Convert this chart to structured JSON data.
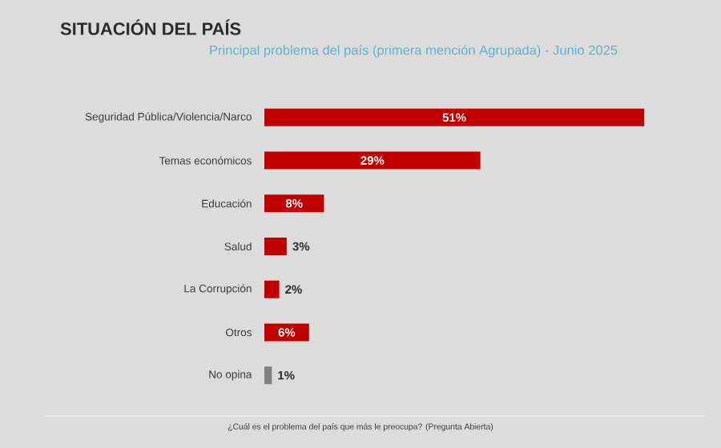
{
  "chart_data": {
    "type": "bar",
    "orientation": "horizontal",
    "title": "SITUACIÓN DEL PAÍS",
    "subtitle": "Principal problema del país (primera mención Agrupada) - Junio 2025",
    "categories": [
      "Seguridad Pública/Violencia/Narco",
      "Temas económicos",
      "Educación",
      "Salud",
      "La Corrupción",
      "Otros",
      "No opina"
    ],
    "values": [
      51,
      29,
      8,
      3,
      2,
      6,
      1
    ],
    "value_labels": [
      "51%",
      "29%",
      "8%",
      "3%",
      "2%",
      "6%",
      "1%"
    ],
    "colors": [
      "#c00000",
      "#c00000",
      "#c00000",
      "#c00000",
      "#c00000",
      "#c00000",
      "#808080"
    ],
    "annotations": [
      "¿Cuál es el problema del país que más le preocupa? (Pregunta Abierta)"
    ]
  }
}
